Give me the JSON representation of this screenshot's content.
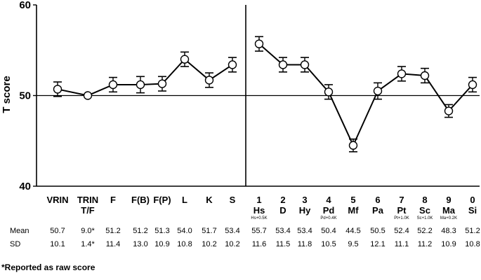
{
  "chart_data": {
    "type": "line",
    "ylabel": "T score",
    "ylim": [
      40,
      60
    ],
    "yticks": [
      "40",
      "50",
      "60"
    ],
    "reference_line": 50,
    "left_panel": {
      "categories": [
        {
          "label": "VRIN",
          "label2": "",
          "sub": "",
          "mean": 50.7,
          "err": 0.8,
          "mean_text": "50.7",
          "sd_text": "10.1"
        },
        {
          "label": "TRIN",
          "label2": "T/F",
          "sub": "",
          "mean": 50.0,
          "err": 0.0,
          "mean_text": "9.0*",
          "sd_text": "1.4*"
        },
        {
          "label": "F",
          "label2": "",
          "sub": "",
          "mean": 51.2,
          "err": 0.8,
          "mean_text": "51.2",
          "sd_text": "11.4"
        },
        {
          "label": "F(B)",
          "label2": "",
          "sub": "",
          "mean": 51.2,
          "err": 0.9,
          "mean_text": "51.2",
          "sd_text": "13.0"
        },
        {
          "label": "F(P)",
          "label2": "",
          "sub": "",
          "mean": 51.3,
          "err": 0.8,
          "mean_text": "51.3",
          "sd_text": "10.9"
        },
        {
          "label": "L",
          "label2": "",
          "sub": "",
          "mean": 54.0,
          "err": 0.8,
          "mean_text": "54.0",
          "sd_text": "10.8"
        },
        {
          "label": "K",
          "label2": "",
          "sub": "",
          "mean": 51.7,
          "err": 0.8,
          "mean_text": "51.7",
          "sd_text": "10.2"
        },
        {
          "label": "S",
          "label2": "",
          "sub": "",
          "mean": 53.4,
          "err": 0.8,
          "mean_text": "53.4",
          "sd_text": "10.2"
        }
      ]
    },
    "right_panel": {
      "categories": [
        {
          "label": "1",
          "label2": "Hs",
          "sub": "Hs+0.5K",
          "mean": 55.7,
          "err": 0.8,
          "mean_text": "55.7",
          "sd_text": "11.6"
        },
        {
          "label": "2",
          "label2": "D",
          "sub": "",
          "mean": 53.4,
          "err": 0.8,
          "mean_text": "53.4",
          "sd_text": "11.5"
        },
        {
          "label": "3",
          "label2": "Hy",
          "sub": "",
          "mean": 53.4,
          "err": 0.8,
          "mean_text": "53.4",
          "sd_text": "11.8"
        },
        {
          "label": "4",
          "label2": "Pd",
          "sub": "Pd+0.4K",
          "mean": 50.4,
          "err": 0.8,
          "mean_text": "50.4",
          "sd_text": "10.5"
        },
        {
          "label": "5",
          "label2": "Mf",
          "sub": "",
          "mean": 44.5,
          "err": 0.7,
          "mean_text": "44.5",
          "sd_text": "9.5"
        },
        {
          "label": "6",
          "label2": "Pa",
          "sub": "",
          "mean": 50.5,
          "err": 0.9,
          "mean_text": "50.5",
          "sd_text": "12.1"
        },
        {
          "label": "7",
          "label2": "Pt",
          "sub": "Pt+1.0K",
          "mean": 52.4,
          "err": 0.8,
          "mean_text": "52.4",
          "sd_text": "11.1"
        },
        {
          "label": "8",
          "label2": "Sc",
          "sub": "Sc+1.0K",
          "mean": 52.2,
          "err": 0.8,
          "mean_text": "52.2",
          "sd_text": "11.2"
        },
        {
          "label": "9",
          "label2": "Ma",
          "sub": "Ma+0.2K",
          "mean": 48.3,
          "err": 0.7,
          "mean_text": "48.3",
          "sd_text": "10.9"
        },
        {
          "label": "0",
          "label2": "Si",
          "sub": "",
          "mean": 51.2,
          "err": 0.8,
          "mean_text": "51.2",
          "sd_text": "10.8"
        }
      ]
    },
    "row_labels": {
      "mean": "Mean",
      "sd": "SD"
    },
    "footnote": "*Reported as raw score"
  }
}
